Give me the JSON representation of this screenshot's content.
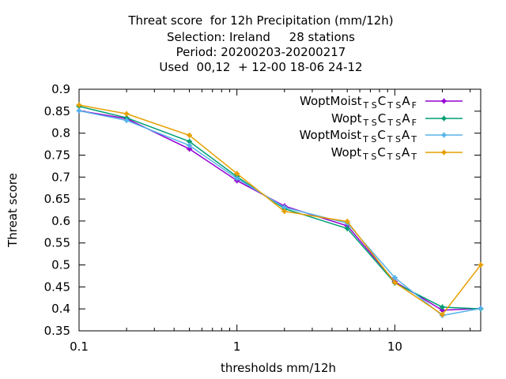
{
  "title_lines": [
    "Threat score  for 12h Precipitation (mm/12h)",
    "Selection: Ireland     28 stations",
    "Period: 20200203-20200217",
    "Used  00,12  + 12-00 18-06 24-12"
  ],
  "chart_data": {
    "type": "line",
    "xlabel": "thresholds mm/12h",
    "ylabel": "Threat score",
    "xscale": "log",
    "xlim": [
      0.1,
      35
    ],
    "ylim": [
      0.35,
      0.9
    ],
    "x_ticks": [
      0.1,
      1,
      10
    ],
    "x_tick_labels": [
      "0.1",
      "1",
      "10"
    ],
    "y_ticks": [
      0.35,
      0.4,
      0.45,
      0.5,
      0.55,
      0.6,
      0.65,
      0.7,
      0.75,
      0.8,
      0.85,
      0.9
    ],
    "y_tick_labels": [
      "0.35",
      "0.4",
      "0.45",
      "0.5",
      "0.55",
      "0.6",
      "0.65",
      "0.7",
      "0.75",
      "0.8",
      "0.85",
      "0.9"
    ],
    "grid": false,
    "legend_position": "top-right",
    "series": [
      {
        "name": "WoptMoist_{TS}C_{TS}A_{F}",
        "legend": {
          "base": "WoptMoist",
          "parts": [
            [
              "TS",
              "C"
            ],
            [
              "TS",
              "A"
            ],
            [
              "F",
              ""
            ]
          ]
        },
        "color": "#9400d3",
        "x": [
          0.1,
          0.2,
          0.5,
          1,
          2,
          5,
          10,
          20,
          35
        ],
        "y": [
          0.851,
          0.833,
          0.764,
          0.692,
          0.634,
          0.589,
          0.462,
          0.397,
          0.401
        ]
      },
      {
        "name": "Wopt_{TS}C_{TS}A_{F}",
        "legend": {
          "base": "Wopt",
          "parts": [
            [
              "TS",
              "C"
            ],
            [
              "TS",
              "A"
            ],
            [
              "F",
              ""
            ]
          ]
        },
        "color": "#009e73",
        "x": [
          0.1,
          0.2,
          0.5,
          1,
          2,
          5,
          10,
          20,
          35
        ],
        "y": [
          0.861,
          0.835,
          0.781,
          0.701,
          0.628,
          0.583,
          0.459,
          0.404,
          0.4
        ]
      },
      {
        "name": "WoptMoist_{TS}C_{TS}A_{T}",
        "legend": {
          "base": "WoptMoist",
          "parts": [
            [
              "TS",
              "C"
            ],
            [
              "TS",
              "A"
            ],
            [
              "T",
              ""
            ]
          ]
        },
        "color": "#56b4e9",
        "x": [
          0.1,
          0.2,
          0.5,
          1,
          2,
          5,
          10,
          20,
          35
        ],
        "y": [
          0.851,
          0.829,
          0.772,
          0.697,
          0.631,
          0.595,
          0.471,
          0.385,
          0.401
        ]
      },
      {
        "name": "Wopt_{TS}C_{TS}A_{T}",
        "legend": {
          "base": "Wopt",
          "parts": [
            [
              "TS",
              "C"
            ],
            [
              "TS",
              "A"
            ],
            [
              "T",
              ""
            ]
          ]
        },
        "color": "#e69f00",
        "x": [
          0.1,
          0.2,
          0.5,
          1,
          2,
          5,
          10,
          20,
          35
        ],
        "y": [
          0.864,
          0.844,
          0.795,
          0.708,
          0.622,
          0.599,
          0.46,
          0.387,
          0.5
        ]
      }
    ]
  }
}
